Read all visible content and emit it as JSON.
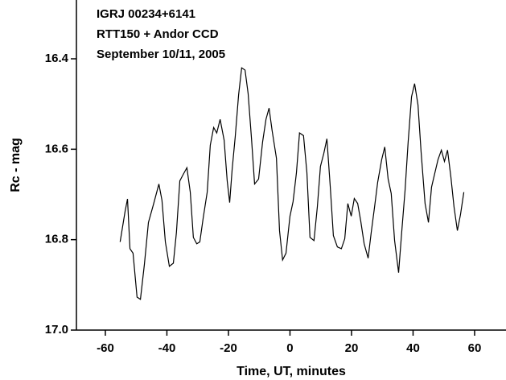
{
  "chart_data": {
    "type": "line",
    "annotations": [
      "IGRJ 00234+6141",
      "RTT150 + Andor CCD",
      "September 10/11, 2005"
    ],
    "x_label": "Time, UT, minutes",
    "y_label": "Rc - mag",
    "color": "#000000",
    "x": [
      -55.2,
      -53.6,
      -52.8,
      -52.0,
      -51.0,
      -49.7,
      -48.6,
      -47.3,
      -46.0,
      -44.4,
      -42.6,
      -41.6,
      -40.5,
      -39.2,
      -37.9,
      -36.9,
      -35.8,
      -34.8,
      -33.5,
      -32.4,
      -31.4,
      -30.3,
      -29.3,
      -28.2,
      -26.9,
      -25.9,
      -24.8,
      -23.8,
      -22.7,
      -21.4,
      -20.4,
      -19.6,
      -18.8,
      -17.8,
      -16.7,
      -15.7,
      -14.6,
      -13.6,
      -12.5,
      -11.5,
      -10.2,
      -8.9,
      -7.8,
      -6.8,
      -5.8,
      -4.4,
      -3.4,
      -2.4,
      -1.3,
      0,
      1.0,
      2.1,
      3.1,
      4.4,
      5.5,
      6.5,
      7.8,
      8.9,
      9.9,
      11.0,
      12.0,
      13.1,
      14.1,
      15.4,
      16.7,
      17.8,
      18.8,
      19.9,
      20.9,
      22.0,
      23.0,
      24.1,
      25.4,
      26.4,
      27.5,
      28.5,
      29.8,
      30.8,
      31.9,
      32.9,
      34.0,
      35.3,
      36.3,
      37.4,
      38.4,
      39.5,
      40.5,
      41.6,
      42.6,
      43.9,
      45.0,
      46.0,
      47.1,
      48.1,
      49.2,
      50.2,
      51.2,
      52.3,
      53.3,
      54.4,
      55.4,
      56.5
    ],
    "values": [
      16.805,
      16.738,
      16.71,
      16.82,
      16.83,
      16.927,
      16.932,
      16.854,
      16.762,
      16.723,
      16.677,
      16.713,
      16.805,
      16.859,
      16.852,
      16.784,
      16.67,
      16.657,
      16.641,
      16.695,
      16.795,
      16.809,
      16.805,
      16.752,
      16.695,
      16.591,
      16.552,
      16.564,
      16.534,
      16.58,
      16.67,
      16.718,
      16.645,
      16.573,
      16.48,
      16.42,
      16.425,
      16.477,
      16.577,
      16.677,
      16.666,
      16.584,
      16.534,
      16.509,
      16.559,
      16.62,
      16.78,
      16.845,
      16.83,
      16.748,
      16.716,
      16.652,
      16.564,
      16.57,
      16.652,
      16.795,
      16.802,
      16.727,
      16.638,
      16.609,
      16.577,
      16.684,
      16.791,
      16.816,
      16.82,
      16.798,
      16.72,
      16.748,
      16.709,
      16.72,
      16.759,
      16.809,
      16.841,
      16.784,
      16.727,
      16.673,
      16.623,
      16.595,
      16.666,
      16.698,
      16.802,
      16.873,
      16.784,
      16.691,
      16.584,
      16.484,
      16.455,
      16.502,
      16.605,
      16.72,
      16.762,
      16.684,
      16.652,
      16.623,
      16.602,
      16.627,
      16.602,
      16.662,
      16.727,
      16.78,
      16.745,
      16.695
    ],
    "xlim": [
      -69.4,
      70.2
    ],
    "xticks": [
      -60,
      -40,
      -20,
      0,
      20,
      40,
      60
    ],
    "ylim": [
      17.0,
      16.27
    ],
    "yticks": [
      16.4,
      16.6,
      16.8,
      {
        "value": 17.0,
        "label": "17.0"
      }
    ]
  }
}
